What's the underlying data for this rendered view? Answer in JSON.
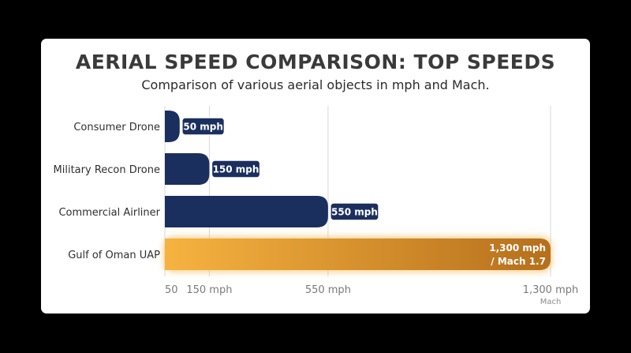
{
  "colors": {
    "background": "#000000",
    "card": "#ffffff",
    "bar_primary": "#1b2f5e",
    "bar_highlight_start": "#f6b340",
    "bar_highlight_end": "#b66f1c",
    "grid": "#d9d9d9"
  },
  "chart_data": {
    "type": "bar",
    "orientation": "horizontal",
    "title": "AERIAL SPEED COMPARISON: TOP SPEEDS",
    "subtitle": "Comparison of various aerial objects in mph and Mach.",
    "categories": [
      "Consumer Drone",
      "Military Recon Drone",
      "Commercial Airliner",
      "Gulf of Oman UAP"
    ],
    "values": [
      50,
      150,
      550,
      1300
    ],
    "data_labels": [
      [
        "50 mph"
      ],
      [
        "150 mph"
      ],
      [
        "550 mph"
      ],
      [
        "1,300 mph",
        "/ Mach 1.7"
      ]
    ],
    "highlight_index": 3,
    "x_ticks": [
      {
        "value": 50,
        "label": "50",
        "sublabel": ""
      },
      {
        "value": 150,
        "label": "150 mph",
        "sublabel": ""
      },
      {
        "value": 550,
        "label": "550 mph",
        "sublabel": ""
      },
      {
        "value": 1300,
        "label": "1,300 mph",
        "sublabel": "Mach"
      }
    ],
    "xlim": [
      0,
      1300
    ],
    "grid": true,
    "legend": "none"
  }
}
